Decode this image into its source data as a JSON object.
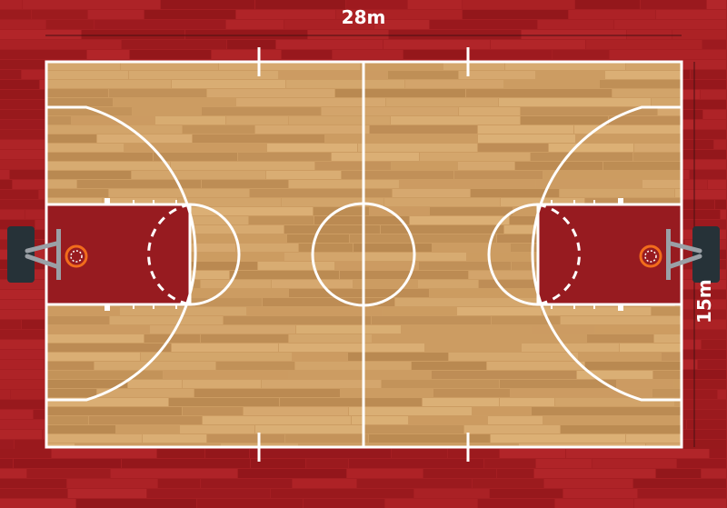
{
  "dimensions": {
    "width_label": "28m",
    "height_label": "15m"
  },
  "colors": {
    "surround": "#a51e22",
    "surround_stripe_dark": "#8e1519",
    "surround_stripe_light": "#b6282c",
    "paint": "#971b20",
    "wood_base": "#cc9c62",
    "wood_light": "#deb47a",
    "wood_dark": "#b5854e",
    "lines": "#ffffff",
    "backboard_stand": "#263238",
    "rim": "#f26c1c"
  },
  "icons": {
    "left_hoop": "basketball-hoop-icon",
    "right_hoop": "basketball-hoop-icon"
  }
}
